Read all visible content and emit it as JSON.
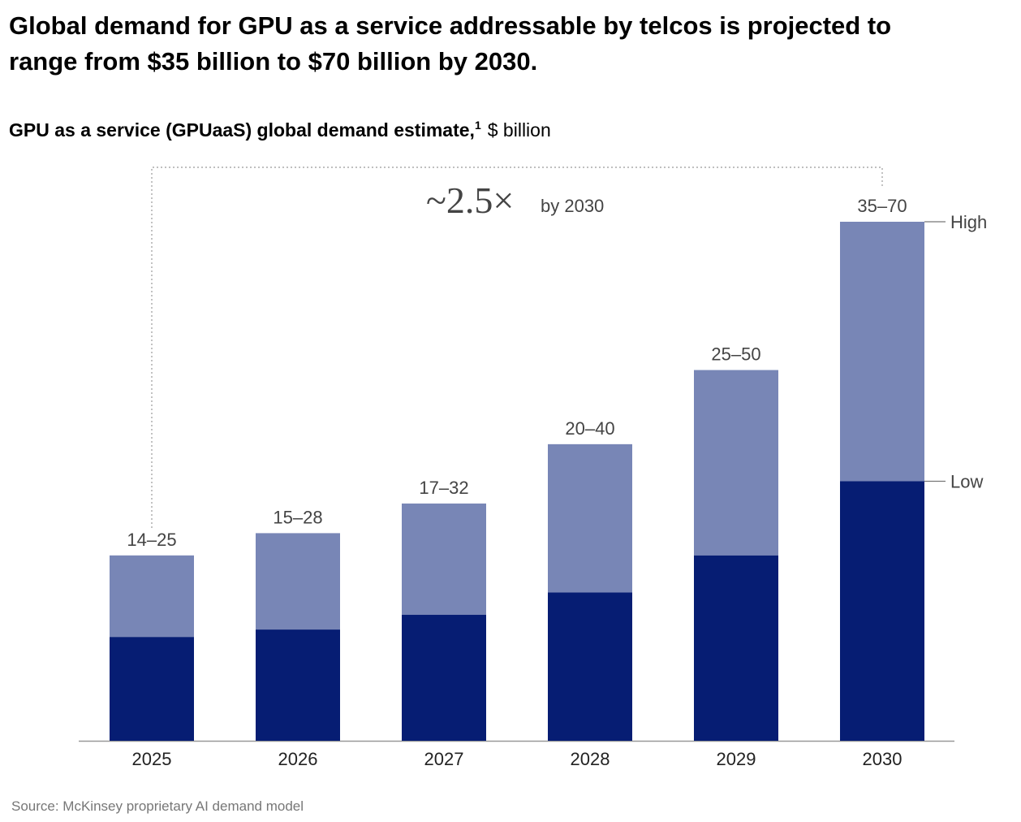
{
  "chart_data": {
    "type": "bar",
    "title": "Global demand for GPU as a service addressable by telcos is projected to range from $35 billion to $70 billion by 2030.",
    "subtitle": "GPU as a service (GPUaaS) global demand estimate,",
    "subtitle_footnote": "1",
    "unit": "$ billion",
    "annotation": "~2.5×",
    "annotation_note": "by 2030",
    "source": "Source: McKinsey proprietary AI demand model",
    "categories": [
      "2025",
      "2026",
      "2027",
      "2028",
      "2029",
      "2030"
    ],
    "series": [
      {
        "name": "Low",
        "color": "#061d73",
        "values": [
          14,
          15,
          17,
          20,
          25,
          35
        ]
      },
      {
        "name": "High",
        "color": "#7886b6",
        "values": [
          25,
          28,
          32,
          40,
          50,
          70
        ]
      }
    ],
    "range_labels": [
      "14–25",
      "15–28",
      "17–32",
      "20–40",
      "25–50",
      "35–70"
    ],
    "ylim": [
      0,
      70
    ]
  }
}
